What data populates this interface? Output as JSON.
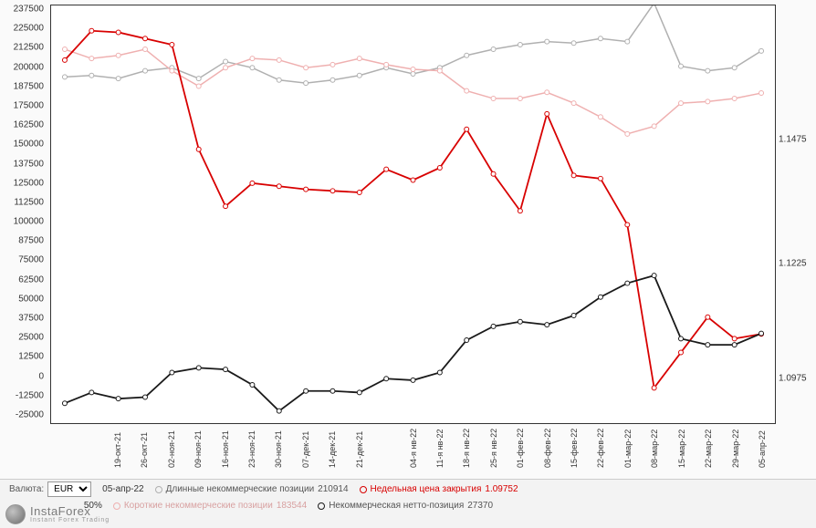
{
  "chart": {
    "type": "line",
    "background_color": "#ffffff",
    "border_color": "#333333",
    "y_left": {
      "min": -25000,
      "max": 237500,
      "step": 12500,
      "ticks": [
        237500,
        225000,
        212500,
        200000,
        187500,
        175000,
        162500,
        150000,
        137500,
        125000,
        112500,
        100000,
        87500,
        75000,
        62500,
        50000,
        37500,
        25000,
        12500,
        0,
        -12500,
        -25000
      ],
      "fontsize": 10
    },
    "y_right_ticks": [
      {
        "label": "1.1475",
        "pos": 148
      },
      {
        "label": "1.1225",
        "pos": 284
      },
      {
        "label": "1.0975",
        "pos": 410
      }
    ],
    "x_labels": [
      "",
      "",
      "19-окт-21",
      "26-окт-21",
      "02-ноя-21",
      "09-ноя-21",
      "16-ноя-21",
      "23-ноя-21",
      "30-ноя-21",
      "07-дек-21",
      "14-дек-21",
      "21-дек-21",
      "",
      "04-я нв-22",
      "11-я нв-22",
      "18-я нв-22",
      "25-я нв-22",
      "01-фев-22",
      "08-фев-22",
      "15-фев-22",
      "22-фев-22",
      "01-мар-22",
      "08-мар-22",
      "15-мар-22",
      "22-мар-22",
      "29-мар-22",
      "05-апр-22"
    ],
    "series": {
      "long_noncomm": {
        "color": "#b0b0b0",
        "width": 1.5,
        "marker": "circle",
        "values": [
          194000,
          195000,
          193000,
          198000,
          200000,
          193000,
          204000,
          200000,
          192000,
          190000,
          192000,
          195000,
          200000,
          196000,
          200000,
          208000,
          212000,
          215000,
          217000,
          216000,
          219000,
          217000,
          242000,
          201000,
          198000,
          200000,
          210914
        ]
      },
      "short_noncomm": {
        "color": "#efb0b0",
        "width": 1.5,
        "marker": "circle",
        "values": [
          212000,
          206000,
          208000,
          212000,
          198000,
          188000,
          200000,
          206000,
          205000,
          200000,
          202000,
          206000,
          202000,
          199000,
          198000,
          185000,
          180000,
          180000,
          184000,
          177000,
          168000,
          157000,
          162000,
          177000,
          178000,
          180000,
          183544
        ]
      },
      "close_price": {
        "color": "#d80000",
        "width": 1.8,
        "marker": "circle",
        "price_values": [
          1.1595,
          1.164,
          1.163,
          1.161,
          1.156,
          1.131,
          1.1235,
          1.129,
          1.13,
          1.129,
          1.128,
          1.133,
          1.137,
          1.132,
          1.135,
          1.1455,
          1.1325,
          1.123,
          1.1485,
          1.133,
          1.131,
          1.112,
          1.09,
          1.0955,
          1.104,
          1.0975,
          1.0975
        ],
        "y_values_mapped": [
          205000,
          224000,
          223000,
          219000,
          215000,
          147000,
          110000,
          125000,
          123000,
          121000,
          120000,
          119000,
          134000,
          127000,
          135000,
          160000,
          131000,
          107000,
          170000,
          130000,
          128000,
          98000,
          -8000,
          15000,
          38000,
          24000,
          27000
        ]
      },
      "net_position": {
        "color": "#1a1a1a",
        "width": 1.8,
        "marker": "circle",
        "values": [
          -18000,
          -11000,
          -15000,
          -14000,
          2000,
          5000,
          4000,
          -6000,
          -23000,
          -10000,
          -10000,
          -11000,
          -2000,
          -3000,
          2000,
          23000,
          32000,
          35000,
          33000,
          39000,
          51000,
          60000,
          65000,
          24000,
          20000,
          20000,
          27370
        ]
      }
    }
  },
  "legend": {
    "currency_label": "Валюта:",
    "currency_value": "EUR",
    "date": "05-апр-22",
    "percent": "50%",
    "items": {
      "long": {
        "label": "Длинные некоммерческие позиции",
        "value": "210914",
        "color": "#b0b0b0"
      },
      "close": {
        "label": "Недельная цена закрытия",
        "value": "1.09752",
        "color": "#d80000"
      },
      "short": {
        "label": "Короткие некоммерческие позиции",
        "value": "183544",
        "color": "#efb0b0"
      },
      "net": {
        "label": "Некоммерческая нетто-позиция",
        "value": "27370",
        "color": "#1a1a1a"
      }
    }
  },
  "watermark": {
    "brand": "InstaForex",
    "sub": "Instant Forex Trading"
  }
}
